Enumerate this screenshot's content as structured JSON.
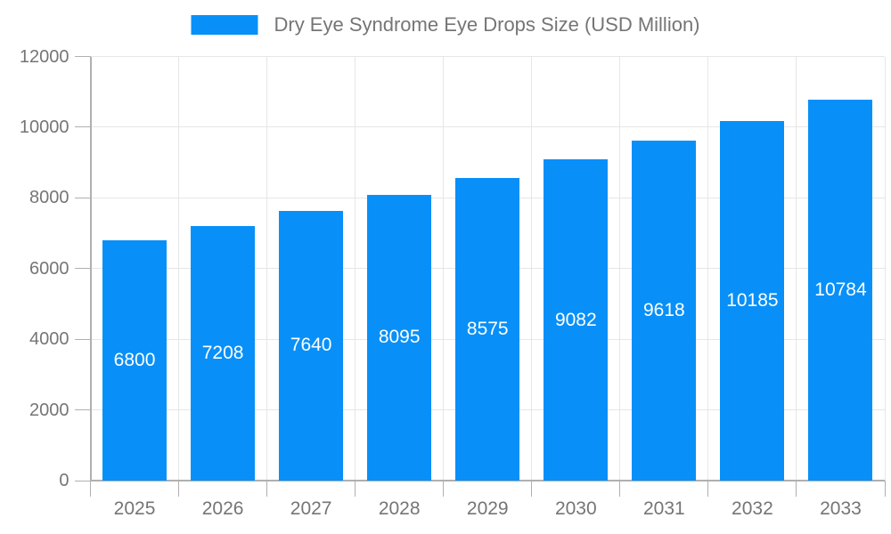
{
  "legend": {
    "label": "Dry Eye Syndrome Eye Drops Size (USD Million)"
  },
  "chart_data": {
    "type": "bar",
    "title": "Dry Eye Syndrome Eye Drops Size (USD Million)",
    "series_name": "Dry Eye Syndrome Eye Drops Size (USD Million)",
    "categories": [
      "2025",
      "2026",
      "2027",
      "2028",
      "2029",
      "2030",
      "2031",
      "2032",
      "2033"
    ],
    "values": [
      6800,
      7208,
      7640,
      8095,
      8575,
      9082,
      9618,
      10185,
      10784
    ],
    "xlabel": "",
    "ylabel": "",
    "ylim": [
      0,
      12000
    ],
    "yticks": [
      0,
      2000,
      4000,
      6000,
      8000,
      10000,
      12000
    ],
    "grid": true,
    "legend_position": "top-center",
    "value_labels": "inside-center",
    "colors": {
      "bar": "#0890f8",
      "axis": "#b0b0b0",
      "gridline": "#e6e6e6",
      "tick_label": "#757575",
      "value_label": "#ffffff",
      "background": "#ffffff"
    }
  }
}
